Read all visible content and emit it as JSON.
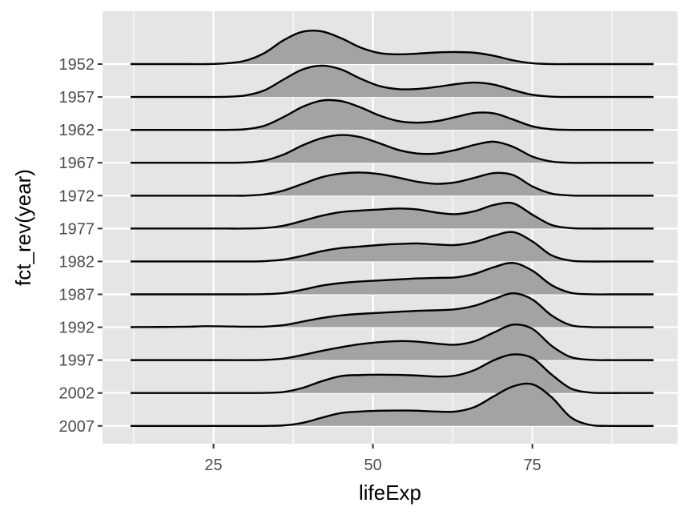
{
  "chart_data": {
    "type": "area",
    "subtype": "ridgeline",
    "title": "",
    "xlabel": "lifeExp",
    "ylabel": "fct_rev(year)",
    "xlim": [
      12,
      94
    ],
    "x_ticks": [
      25,
      50,
      75
    ],
    "categories": [
      "1952",
      "1957",
      "1962",
      "1967",
      "1972",
      "1977",
      "1982",
      "1987",
      "1992",
      "1997",
      "2002",
      "2007"
    ],
    "density_scale": 0.032,
    "x": [
      12,
      15,
      18,
      21,
      24,
      27,
      30,
      33,
      36,
      39,
      42,
      45,
      48,
      51,
      54,
      57,
      60,
      63,
      66,
      69,
      72,
      75,
      78,
      81,
      84,
      87,
      90,
      94
    ],
    "series": [
      {
        "name": "1952",
        "values": [
          0,
          0,
          0,
          0,
          0,
          0.0007,
          0.0033,
          0.0108,
          0.0232,
          0.0315,
          0.0318,
          0.0252,
          0.0163,
          0.0108,
          0.0095,
          0.0102,
          0.0113,
          0.0117,
          0.011,
          0.008,
          0.0036,
          0.0008,
          0,
          0,
          0,
          0,
          0,
          0
        ]
      },
      {
        "name": "1957",
        "values": [
          0,
          0,
          0,
          0,
          0,
          0.0002,
          0.0015,
          0.0065,
          0.017,
          0.0268,
          0.0305,
          0.0268,
          0.018,
          0.0107,
          0.0076,
          0.0078,
          0.0098,
          0.0125,
          0.014,
          0.012,
          0.0067,
          0.0021,
          0.0003,
          0,
          0,
          0,
          0,
          0
        ]
      },
      {
        "name": "1962",
        "values": [
          0,
          0,
          0,
          0,
          0,
          0,
          0.0006,
          0.004,
          0.0125,
          0.0225,
          0.0285,
          0.028,
          0.022,
          0.014,
          0.0085,
          0.007,
          0.0085,
          0.0125,
          0.0165,
          0.016,
          0.01,
          0.0035,
          0.0006,
          0,
          0,
          0,
          0,
          0
        ]
      },
      {
        "name": "1967",
        "values": [
          0,
          0,
          0,
          0,
          0,
          0,
          0.0003,
          0.0022,
          0.008,
          0.017,
          0.024,
          0.027,
          0.025,
          0.019,
          0.0125,
          0.009,
          0.009,
          0.0125,
          0.0175,
          0.0205,
          0.0155,
          0.006,
          0.0012,
          0,
          0,
          0,
          0,
          0
        ]
      },
      {
        "name": "1972",
        "values": [
          0,
          0,
          0,
          0,
          0,
          0,
          0,
          0.0012,
          0.005,
          0.0115,
          0.018,
          0.0215,
          0.0225,
          0.021,
          0.0175,
          0.0135,
          0.0115,
          0.013,
          0.0175,
          0.022,
          0.02,
          0.009,
          0.002,
          0.0002,
          0,
          0,
          0,
          0
        ]
      },
      {
        "name": "1977",
        "values": [
          0,
          0,
          0,
          0,
          0,
          0,
          0,
          0.0005,
          0.0028,
          0.0075,
          0.0125,
          0.016,
          0.0175,
          0.0185,
          0.0195,
          0.0185,
          0.0155,
          0.014,
          0.017,
          0.023,
          0.0245,
          0.0135,
          0.0035,
          0.0004,
          0,
          0,
          0,
          0
        ]
      },
      {
        "name": "1982",
        "values": [
          0,
          0,
          0,
          0,
          0,
          0,
          0,
          0.0003,
          0.0018,
          0.0055,
          0.01,
          0.013,
          0.0145,
          0.016,
          0.017,
          0.0175,
          0.0165,
          0.016,
          0.019,
          0.025,
          0.0285,
          0.0195,
          0.006,
          0.0008,
          0,
          0,
          0,
          0
        ]
      },
      {
        "name": "1987",
        "values": [
          0,
          0,
          0,
          0,
          0,
          0,
          0,
          0.0002,
          0.0012,
          0.0045,
          0.0085,
          0.011,
          0.0125,
          0.0135,
          0.0145,
          0.0155,
          0.016,
          0.0165,
          0.02,
          0.0265,
          0.0305,
          0.023,
          0.009,
          0.0015,
          0.0001,
          0,
          0,
          0
        ]
      },
      {
        "name": "1992",
        "values": [
          0.0001,
          0.0002,
          0.0003,
          0.0005,
          0.001,
          0.0008,
          0.0005,
          0.0006,
          0.002,
          0.0055,
          0.009,
          0.0115,
          0.013,
          0.014,
          0.015,
          0.016,
          0.0165,
          0.0175,
          0.021,
          0.0275,
          0.033,
          0.027,
          0.0115,
          0.002,
          0.0002,
          0,
          0,
          0
        ]
      },
      {
        "name": "1997",
        "values": [
          0,
          0,
          0,
          0,
          0,
          0,
          0,
          0.0002,
          0.0015,
          0.005,
          0.009,
          0.0125,
          0.0155,
          0.0175,
          0.0185,
          0.018,
          0.016,
          0.015,
          0.0185,
          0.027,
          0.0345,
          0.0305,
          0.014,
          0.003,
          0.0003,
          0,
          0,
          0
        ]
      },
      {
        "name": "2002",
        "values": [
          0,
          0,
          0,
          0,
          0,
          0,
          0,
          0.0001,
          0.001,
          0.005,
          0.0115,
          0.0165,
          0.0175,
          0.0178,
          0.0176,
          0.017,
          0.016,
          0.017,
          0.0225,
          0.032,
          0.0375,
          0.034,
          0.018,
          0.0045,
          0.0005,
          0,
          0,
          0
        ]
      },
      {
        "name": "2007",
        "values": [
          0,
          0,
          0,
          0,
          0,
          0,
          0,
          0,
          0.0005,
          0.003,
          0.008,
          0.0125,
          0.014,
          0.0148,
          0.015,
          0.0148,
          0.014,
          0.014,
          0.0185,
          0.029,
          0.0385,
          0.0405,
          0.028,
          0.0085,
          0.001,
          0,
          0,
          0
        ]
      }
    ],
    "fill_color": "#a3a3a3",
    "line_color": "#000000",
    "panel_color": "#e5e5e5",
    "grid_color": "#ffffff",
    "grid": true,
    "legend": "none"
  }
}
